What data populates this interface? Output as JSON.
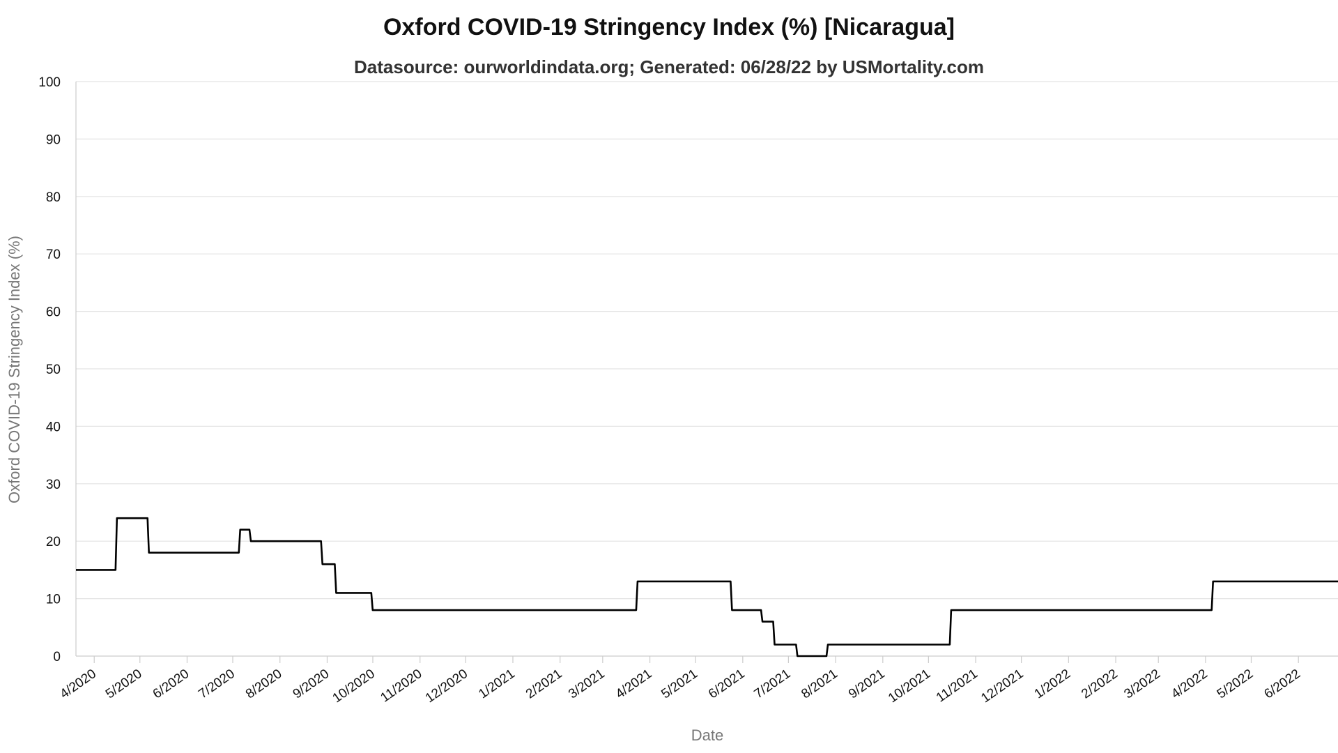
{
  "chart_data": {
    "type": "line",
    "title": "Oxford COVID-19 Stringency Index (%) [Nicaragua]",
    "subtitle": "Datasource: ourworldindata.org; Generated: 06/28/22 by USMortality.com",
    "xlabel": "Date",
    "ylabel": "Oxford COVID-19 Stringency Index (%)",
    "ylim": [
      0,
      100
    ],
    "xlim": [
      "2020-03-20",
      "2022-06-27"
    ],
    "yticks": [
      0,
      10,
      20,
      30,
      40,
      50,
      60,
      70,
      80,
      90,
      100
    ],
    "xticks": [
      {
        "label": "4/2020",
        "date": "2020-04-01"
      },
      {
        "label": "5/2020",
        "date": "2020-05-01"
      },
      {
        "label": "6/2020",
        "date": "2020-06-01"
      },
      {
        "label": "7/2020",
        "date": "2020-07-01"
      },
      {
        "label": "8/2020",
        "date": "2020-08-01"
      },
      {
        "label": "9/2020",
        "date": "2020-09-01"
      },
      {
        "label": "10/2020",
        "date": "2020-10-01"
      },
      {
        "label": "11/2020",
        "date": "2020-11-01"
      },
      {
        "label": "12/2020",
        "date": "2020-12-01"
      },
      {
        "label": "1/2021",
        "date": "2021-01-01"
      },
      {
        "label": "2/2021",
        "date": "2021-02-01"
      },
      {
        "label": "3/2021",
        "date": "2021-03-01"
      },
      {
        "label": "4/2021",
        "date": "2021-04-01"
      },
      {
        "label": "5/2021",
        "date": "2021-05-01"
      },
      {
        "label": "6/2021",
        "date": "2021-06-01"
      },
      {
        "label": "7/2021",
        "date": "2021-07-01"
      },
      {
        "label": "8/2021",
        "date": "2021-08-01"
      },
      {
        "label": "9/2021",
        "date": "2021-09-01"
      },
      {
        "label": "10/2021",
        "date": "2021-10-01"
      },
      {
        "label": "11/2021",
        "date": "2021-11-01"
      },
      {
        "label": "12/2021",
        "date": "2021-12-01"
      },
      {
        "label": "1/2022",
        "date": "2022-01-01"
      },
      {
        "label": "2/2022",
        "date": "2022-02-01"
      },
      {
        "label": "3/2022",
        "date": "2022-03-01"
      },
      {
        "label": "4/2022",
        "date": "2022-04-01"
      },
      {
        "label": "5/2022",
        "date": "2022-05-01"
      },
      {
        "label": "6/2022",
        "date": "2022-06-01"
      }
    ],
    "grid": true,
    "legend": "none",
    "line_color": "#000000",
    "series": [
      {
        "step": true,
        "points": [
          {
            "x": "2020-03-20",
            "y": 15
          },
          {
            "x": "2020-04-15",
            "y": 24
          },
          {
            "x": "2020-05-06",
            "y": 18
          },
          {
            "x": "2020-07-05",
            "y": 22
          },
          {
            "x": "2020-07-12",
            "y": 20
          },
          {
            "x": "2020-08-28",
            "y": 16
          },
          {
            "x": "2020-09-06",
            "y": 11
          },
          {
            "x": "2020-09-30",
            "y": 8
          },
          {
            "x": "2021-03-23",
            "y": 13
          },
          {
            "x": "2021-05-24",
            "y": 8
          },
          {
            "x": "2021-06-13",
            "y": 6
          },
          {
            "x": "2021-06-21",
            "y": 2
          },
          {
            "x": "2021-07-06",
            "y": 0
          },
          {
            "x": "2021-07-26",
            "y": 2
          },
          {
            "x": "2021-10-15",
            "y": 8
          },
          {
            "x": "2022-04-05",
            "y": 13
          },
          {
            "x": "2022-06-27",
            "y": 13
          }
        ]
      }
    ]
  }
}
